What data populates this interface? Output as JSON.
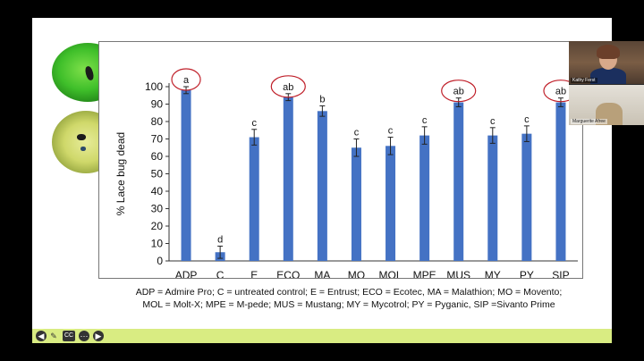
{
  "chart_data": {
    "type": "bar",
    "ylabel": "% Lace bug dead",
    "xlabel": "",
    "ylim": [
      0,
      100
    ],
    "yticks": [
      0,
      10,
      20,
      30,
      40,
      50,
      60,
      70,
      80,
      90,
      100
    ],
    "categories": [
      "ADP",
      "C",
      "E",
      "ECO",
      "MA",
      "MO",
      "MOL",
      "MPE",
      "MUS",
      "MY",
      "PY",
      "SIP"
    ],
    "values": [
      98,
      5,
      71,
      94,
      86,
      65,
      66,
      72,
      91,
      72,
      73,
      91
    ],
    "errors": [
      2,
      3.5,
      4.5,
      2,
      3,
      5,
      5,
      5,
      2.5,
      4.5,
      4.5,
      2.5
    ],
    "significance_letters": [
      "a",
      "d",
      "c",
      "ab",
      "b",
      "c",
      "c",
      "c",
      "ab",
      "c",
      "c",
      "ab"
    ],
    "circled": [
      true,
      false,
      false,
      true,
      false,
      false,
      false,
      false,
      true,
      false,
      false,
      true
    ],
    "colors": {
      "bar": "#4472c4",
      "circle": "#c0202a",
      "axis": "#333333"
    }
  },
  "legend_lines": [
    "ADP = Admire Pro; C = untreated control; E = Entrust; ECO = Ecotec, MA = Malathion; MO = Movento;",
    "MOL = Molt-X; MPE = M-pede; MUS = Mustang; MY = Mycotrol; PY = Pyganic, SIP =Sivanto Prime"
  ],
  "video": {
    "participant_1": "Kathy Ferst",
    "participant_2": "Marguerite Afree"
  },
  "controls": {
    "back_icon": "back-icon",
    "pen_icon": "pen-icon",
    "cc_label": "CC",
    "more_icon": "more-icon",
    "next_icon": "next-icon"
  }
}
